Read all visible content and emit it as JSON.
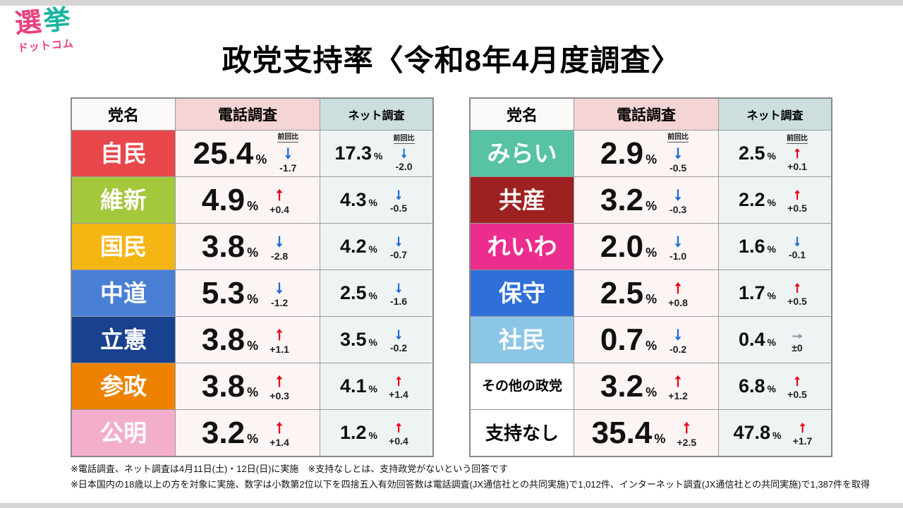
{
  "page": {
    "strip_color": "#d5d5d5",
    "title": "政党支持率〈令和8年4月度調査〉",
    "logo": {
      "word1": "選挙",
      "word1_colors": [
        "#e8417f",
        "#17b5a0"
      ],
      "word2": "ドットコム",
      "word2_color": "#e8417f"
    },
    "footnotes": [
      "※電話調査、ネット調査は4月11日(土)・12日(日)に実施　※支持なしとは、支持政党がないという回答です",
      "※日本国内の18歳以上の方を対象に実施、数字は小数第2位以下を四捨五入有効回答数は電話調査(JX通信社との共同実施)で1,012件、インターネット調査(JX通信社との共同実施)で1,387件を取得"
    ]
  },
  "unit": "%",
  "headers": {
    "party": "党名",
    "phone": "電話調査",
    "net": "ネット調査",
    "prev_label": "前回比"
  },
  "header_colors": {
    "party_bg": "#faf9f7",
    "phone_bg": "#f4d4d4",
    "net_bg": "#ccdede"
  },
  "cell_colors": {
    "phone_bg": "#fcf5f4",
    "net_bg": "#eef4f4"
  },
  "arrows": {
    "up": {
      "glyph": "↑",
      "color": "#e60012"
    },
    "down": {
      "glyph": "↓",
      "color": "#1e6bd6"
    },
    "flat": {
      "glyph": "→",
      "color": "#8e9498"
    }
  },
  "tables": [
    {
      "rows": [
        {
          "party": "自民",
          "bg": "#e8474c",
          "fg": "#ffffff",
          "size": "normal",
          "phone": {
            "value": "25.4",
            "dir": "down",
            "change": "-1.7"
          },
          "net": {
            "value": "17.3",
            "dir": "down",
            "change": "-2.0"
          }
        },
        {
          "party": "維新",
          "bg": "#a3c83c",
          "fg": "#ffffff",
          "size": "normal",
          "phone": {
            "value": "4.9",
            "dir": "up",
            "change": "+0.4"
          },
          "net": {
            "value": "4.3",
            "dir": "down",
            "change": "-0.5"
          }
        },
        {
          "party": "国民",
          "bg": "#f5b513",
          "fg": "#ffffff",
          "size": "normal",
          "phone": {
            "value": "3.8",
            "dir": "down",
            "change": "-2.8"
          },
          "net": {
            "value": "4.2",
            "dir": "down",
            "change": "-0.7"
          }
        },
        {
          "party": "中道",
          "bg": "#4a7fd6",
          "fg": "#ffffff",
          "size": "normal",
          "phone": {
            "value": "5.3",
            "dir": "down",
            "change": "-1.2"
          },
          "net": {
            "value": "2.5",
            "dir": "down",
            "change": "-1.6"
          }
        },
        {
          "party": "立憲",
          "bg": "#18418f",
          "fg": "#ffffff",
          "size": "normal",
          "phone": {
            "value": "3.8",
            "dir": "up",
            "change": "+1.1"
          },
          "net": {
            "value": "3.5",
            "dir": "down",
            "change": "-0.2"
          }
        },
        {
          "party": "参政",
          "bg": "#ee8200",
          "fg": "#ffffff",
          "size": "normal",
          "phone": {
            "value": "3.8",
            "dir": "up",
            "change": "+0.3"
          },
          "net": {
            "value": "4.1",
            "dir": "up",
            "change": "+1.4"
          }
        },
        {
          "party": "公明",
          "bg": "#f3aecb",
          "fg": "#ffffff",
          "size": "normal",
          "phone": {
            "value": "3.2",
            "dir": "up",
            "change": "+1.4"
          },
          "net": {
            "value": "1.2",
            "dir": "up",
            "change": "+0.4"
          }
        }
      ]
    },
    {
      "rows": [
        {
          "party": "みらい",
          "bg": "#57c3a4",
          "fg": "#ffffff",
          "size": "normal",
          "phone": {
            "value": "2.9",
            "dir": "down",
            "change": "-0.5"
          },
          "net": {
            "value": "2.5",
            "dir": "up",
            "change": "+0.1"
          }
        },
        {
          "party": "共産",
          "bg": "#9e2121",
          "fg": "#ffffff",
          "size": "normal",
          "phone": {
            "value": "3.2",
            "dir": "down",
            "change": "-0.3"
          },
          "net": {
            "value": "2.2",
            "dir": "up",
            "change": "+0.5"
          }
        },
        {
          "party": "れいわ",
          "bg": "#eb2d8d",
          "fg": "#ffffff",
          "size": "normal",
          "phone": {
            "value": "2.0",
            "dir": "down",
            "change": "-1.0"
          },
          "net": {
            "value": "1.6",
            "dir": "down",
            "change": "-0.1"
          }
        },
        {
          "party": "保守",
          "bg": "#2e6fd8",
          "fg": "#ffffff",
          "size": "normal",
          "phone": {
            "value": "2.5",
            "dir": "up",
            "change": "+0.8"
          },
          "net": {
            "value": "1.7",
            "dir": "up",
            "change": "+0.5"
          }
        },
        {
          "party": "社民",
          "bg": "#8cc6e6",
          "fg": "#ffffff",
          "size": "normal",
          "phone": {
            "value": "0.7",
            "dir": "down",
            "change": "-0.2"
          },
          "net": {
            "value": "0.4",
            "dir": "flat",
            "change": "±0"
          }
        },
        {
          "party": "その他の政党",
          "bg": "#ffffff",
          "fg": "#000000",
          "size": "small",
          "phone": {
            "value": "3.2",
            "dir": "up",
            "change": "+1.2"
          },
          "net": {
            "value": "6.8",
            "dir": "up",
            "change": "+0.5"
          }
        },
        {
          "party": "支持なし",
          "bg": "#ffffff",
          "fg": "#000000",
          "size": "medium",
          "phone": {
            "value": "35.4",
            "dir": "up",
            "change": "+2.5"
          },
          "net": {
            "value": "47.8",
            "dir": "up",
            "change": "+1.7"
          }
        }
      ]
    }
  ],
  "chart_data": {
    "type": "table",
    "title": "政党支持率〈令和8年4月度調査〉",
    "units": "%",
    "columns": [
      "党名",
      "電話調査",
      "電話調査 前回比",
      "ネット調査",
      "ネット調査 前回比"
    ],
    "rows": [
      [
        "自民",
        25.4,
        -1.7,
        17.3,
        -2.0
      ],
      [
        "維新",
        4.9,
        0.4,
        4.3,
        -0.5
      ],
      [
        "国民",
        3.8,
        -2.8,
        4.2,
        -0.7
      ],
      [
        "中道",
        5.3,
        -1.2,
        2.5,
        -1.6
      ],
      [
        "立憲",
        3.8,
        1.1,
        3.5,
        -0.2
      ],
      [
        "参政",
        3.8,
        0.3,
        4.1,
        1.4
      ],
      [
        "公明",
        3.2,
        1.4,
        1.2,
        0.4
      ],
      [
        "みらい",
        2.9,
        -0.5,
        2.5,
        0.1
      ],
      [
        "共産",
        3.2,
        -0.3,
        2.2,
        0.5
      ],
      [
        "れいわ",
        2.0,
        -1.0,
        1.6,
        -0.1
      ],
      [
        "保守",
        2.5,
        0.8,
        1.7,
        0.5
      ],
      [
        "社民",
        0.7,
        -0.2,
        0.4,
        0
      ],
      [
        "その他の政党",
        3.2,
        1.2,
        6.8,
        0.5
      ],
      [
        "支持なし",
        35.4,
        2.5,
        47.8,
        1.7
      ]
    ]
  }
}
